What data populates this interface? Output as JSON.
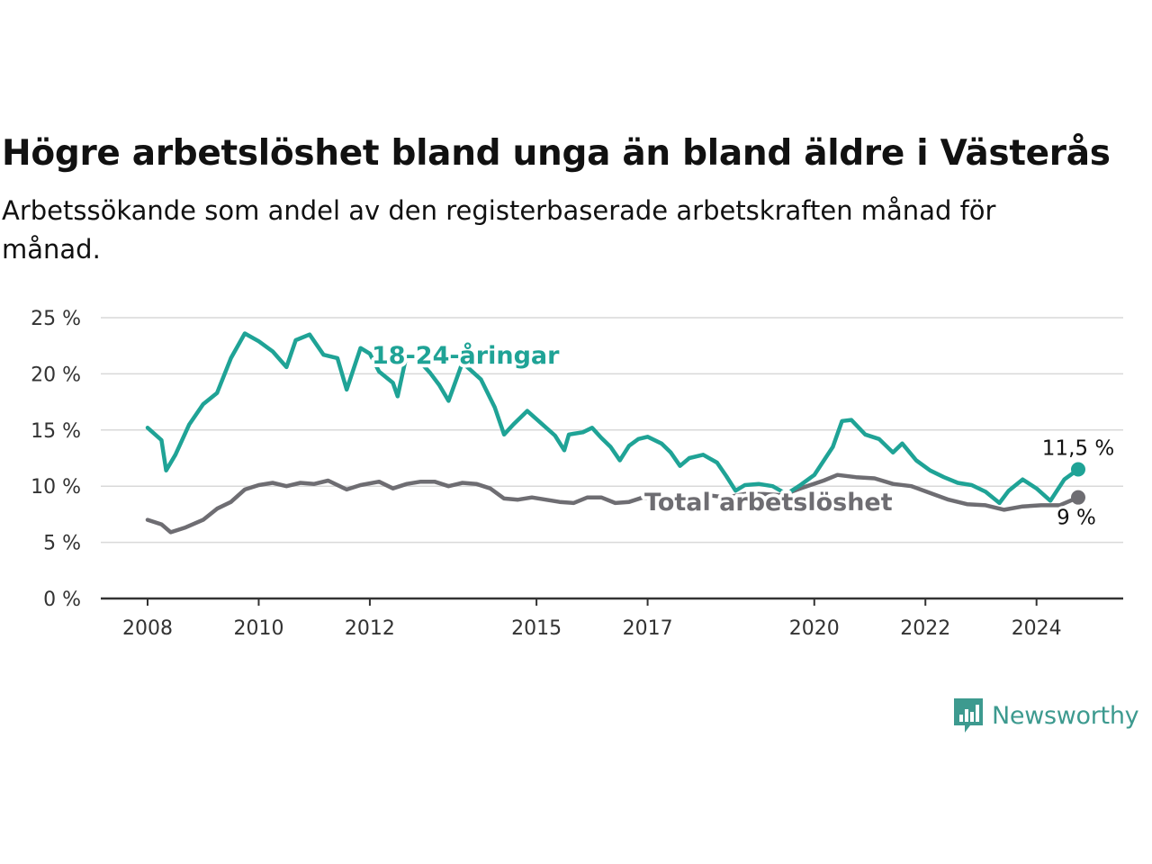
{
  "header": {
    "title": "Högre arbetslöshet bland unga än bland äldre i Västerås",
    "subtitle": "Arbetssökande som andel av den registerbaserade arbetskraften månad för månad."
  },
  "brand": {
    "name": "Newsworthy",
    "icon": "newsworthy-logo-icon",
    "color": "#3d9a8f"
  },
  "chart_data": {
    "type": "line",
    "title": "Högre arbetslöshet bland unga än bland äldre i Västerås",
    "subtitle": "Arbetssökande som andel av den registerbaserade arbetskraften månad för månad.",
    "xlabel": "",
    "ylabel": "",
    "x_range": [
      "2008-01",
      "2025-12"
    ],
    "x_ticks": [
      {
        "label": "2008",
        "year": 2008
      },
      {
        "label": "2010",
        "year": 2010
      },
      {
        "label": "2012",
        "year": 2012
      },
      {
        "label": "2015",
        "year": 2015
      },
      {
        "label": "2017",
        "year": 2017
      },
      {
        "label": "2020",
        "year": 2020
      },
      {
        "label": "2022",
        "year": 2022
      },
      {
        "label": "2024",
        "year": 2024
      }
    ],
    "ylim": [
      0,
      25
    ],
    "y_ticks": [
      {
        "label": "0 %",
        "value": 0
      },
      {
        "label": "5 %",
        "value": 5
      },
      {
        "label": "10 %",
        "value": 10
      },
      {
        "label": "15 %",
        "value": 15
      },
      {
        "label": "20 %",
        "value": 20
      },
      {
        "label": "25 %",
        "value": 25
      }
    ],
    "grid": true,
    "legend": "inline labels",
    "series": [
      {
        "name": "18-24-åringar",
        "color": "#1fa396",
        "end_label": "11,5 %",
        "points": [
          [
            "2008-01",
            15.2
          ],
          [
            "2008-04",
            14.1
          ],
          [
            "2008-05",
            11.4
          ],
          [
            "2008-07",
            12.8
          ],
          [
            "2008-10",
            15.5
          ],
          [
            "2009-01",
            17.3
          ],
          [
            "2009-04",
            18.3
          ],
          [
            "2009-07",
            21.4
          ],
          [
            "2009-10",
            23.6
          ],
          [
            "2010-01",
            22.9
          ],
          [
            "2010-04",
            22.0
          ],
          [
            "2010-07",
            20.6
          ],
          [
            "2010-09",
            23.0
          ],
          [
            "2010-12",
            23.5
          ],
          [
            "2011-03",
            21.7
          ],
          [
            "2011-06",
            21.4
          ],
          [
            "2011-08",
            18.6
          ],
          [
            "2011-11",
            22.3
          ],
          [
            "2012-01",
            21.8
          ],
          [
            "2012-03",
            20.2
          ],
          [
            "2012-06",
            19.2
          ],
          [
            "2012-07",
            18.0
          ],
          [
            "2012-09",
            21.8
          ],
          [
            "2012-12",
            21.0
          ],
          [
            "2013-02",
            20.1
          ],
          [
            "2013-04",
            19.0
          ],
          [
            "2013-06",
            17.6
          ],
          [
            "2013-09",
            21.0
          ],
          [
            "2014-01",
            19.5
          ],
          [
            "2014-04",
            17.0
          ],
          [
            "2014-06",
            14.6
          ],
          [
            "2014-08",
            15.5
          ],
          [
            "2014-11",
            16.7
          ],
          [
            "2015-02",
            15.6
          ],
          [
            "2015-05",
            14.5
          ],
          [
            "2015-07",
            13.2
          ],
          [
            "2015-08",
            14.6
          ],
          [
            "2015-11",
            14.8
          ],
          [
            "2016-01",
            15.2
          ],
          [
            "2016-03",
            14.3
          ],
          [
            "2016-05",
            13.5
          ],
          [
            "2016-07",
            12.3
          ],
          [
            "2016-09",
            13.6
          ],
          [
            "2016-11",
            14.2
          ],
          [
            "2017-01",
            14.4
          ],
          [
            "2017-04",
            13.8
          ],
          [
            "2017-06",
            13.0
          ],
          [
            "2017-08",
            11.8
          ],
          [
            "2017-10",
            12.5
          ],
          [
            "2018-01",
            12.8
          ],
          [
            "2018-04",
            12.1
          ],
          [
            "2018-06",
            10.9
          ],
          [
            "2018-08",
            9.6
          ],
          [
            "2018-10",
            10.1
          ],
          [
            "2019-01",
            10.2
          ],
          [
            "2019-04",
            10.0
          ],
          [
            "2019-07",
            9.3
          ],
          [
            "2019-10",
            10.1
          ],
          [
            "2020-01",
            11.0
          ],
          [
            "2020-05",
            13.5
          ],
          [
            "2020-07",
            15.8
          ],
          [
            "2020-09",
            15.9
          ],
          [
            "2020-12",
            14.6
          ],
          [
            "2021-03",
            14.2
          ],
          [
            "2021-06",
            13.0
          ],
          [
            "2021-08",
            13.8
          ],
          [
            "2021-11",
            12.3
          ],
          [
            "2022-02",
            11.4
          ],
          [
            "2022-05",
            10.8
          ],
          [
            "2022-08",
            10.3
          ],
          [
            "2022-11",
            10.1
          ],
          [
            "2023-02",
            9.5
          ],
          [
            "2023-05",
            8.5
          ],
          [
            "2023-07",
            9.6
          ],
          [
            "2023-10",
            10.6
          ],
          [
            "2024-01",
            9.8
          ],
          [
            "2024-04",
            8.7
          ],
          [
            "2024-07",
            10.6
          ],
          [
            "2024-10",
            11.5
          ]
        ]
      },
      {
        "name": "Total arbetslöshet",
        "color": "#6e6d72",
        "end_label": "9 %",
        "points": [
          [
            "2008-01",
            7.0
          ],
          [
            "2008-04",
            6.6
          ],
          [
            "2008-06",
            5.9
          ],
          [
            "2008-09",
            6.3
          ],
          [
            "2009-01",
            7.0
          ],
          [
            "2009-04",
            8.0
          ],
          [
            "2009-07",
            8.6
          ],
          [
            "2009-10",
            9.7
          ],
          [
            "2010-01",
            10.1
          ],
          [
            "2010-04",
            10.3
          ],
          [
            "2010-07",
            10.0
          ],
          [
            "2010-10",
            10.3
          ],
          [
            "2011-01",
            10.2
          ],
          [
            "2011-04",
            10.5
          ],
          [
            "2011-08",
            9.7
          ],
          [
            "2011-11",
            10.1
          ],
          [
            "2012-03",
            10.4
          ],
          [
            "2012-06",
            9.8
          ],
          [
            "2012-09",
            10.2
          ],
          [
            "2012-12",
            10.4
          ],
          [
            "2013-03",
            10.4
          ],
          [
            "2013-06",
            10.0
          ],
          [
            "2013-09",
            10.3
          ],
          [
            "2013-12",
            10.2
          ],
          [
            "2014-03",
            9.8
          ],
          [
            "2014-06",
            8.9
          ],
          [
            "2014-09",
            8.8
          ],
          [
            "2014-12",
            9.0
          ],
          [
            "2015-03",
            8.8
          ],
          [
            "2015-06",
            8.6
          ],
          [
            "2015-09",
            8.5
          ],
          [
            "2015-12",
            9.0
          ],
          [
            "2016-03",
            9.0
          ],
          [
            "2016-06",
            8.5
          ],
          [
            "2016-09",
            8.6
          ],
          [
            "2016-12",
            9.0
          ],
          [
            "2017-03",
            8.8
          ],
          [
            "2017-06",
            8.8
          ],
          [
            "2017-10",
            8.6
          ],
          [
            "2018-02",
            9.2
          ],
          [
            "2018-06",
            9.0
          ],
          [
            "2018-10",
            9.3
          ],
          [
            "2019-02",
            9.3
          ],
          [
            "2019-06",
            9.2
          ],
          [
            "2019-10",
            9.8
          ],
          [
            "2020-03",
            10.5
          ],
          [
            "2020-06",
            11.0
          ],
          [
            "2020-10",
            10.8
          ],
          [
            "2021-02",
            10.7
          ],
          [
            "2021-06",
            10.2
          ],
          [
            "2021-10",
            10.0
          ],
          [
            "2022-02",
            9.4
          ],
          [
            "2022-06",
            8.8
          ],
          [
            "2022-10",
            8.4
          ],
          [
            "2023-02",
            8.3
          ],
          [
            "2023-06",
            7.9
          ],
          [
            "2023-10",
            8.2
          ],
          [
            "2024-02",
            8.3
          ],
          [
            "2024-06",
            8.3
          ],
          [
            "2024-10",
            9.0
          ]
        ]
      }
    ],
    "label_positions_text": {
      "young_label": "18-24-åringar",
      "total_label": "Total arbetslöshet"
    }
  }
}
